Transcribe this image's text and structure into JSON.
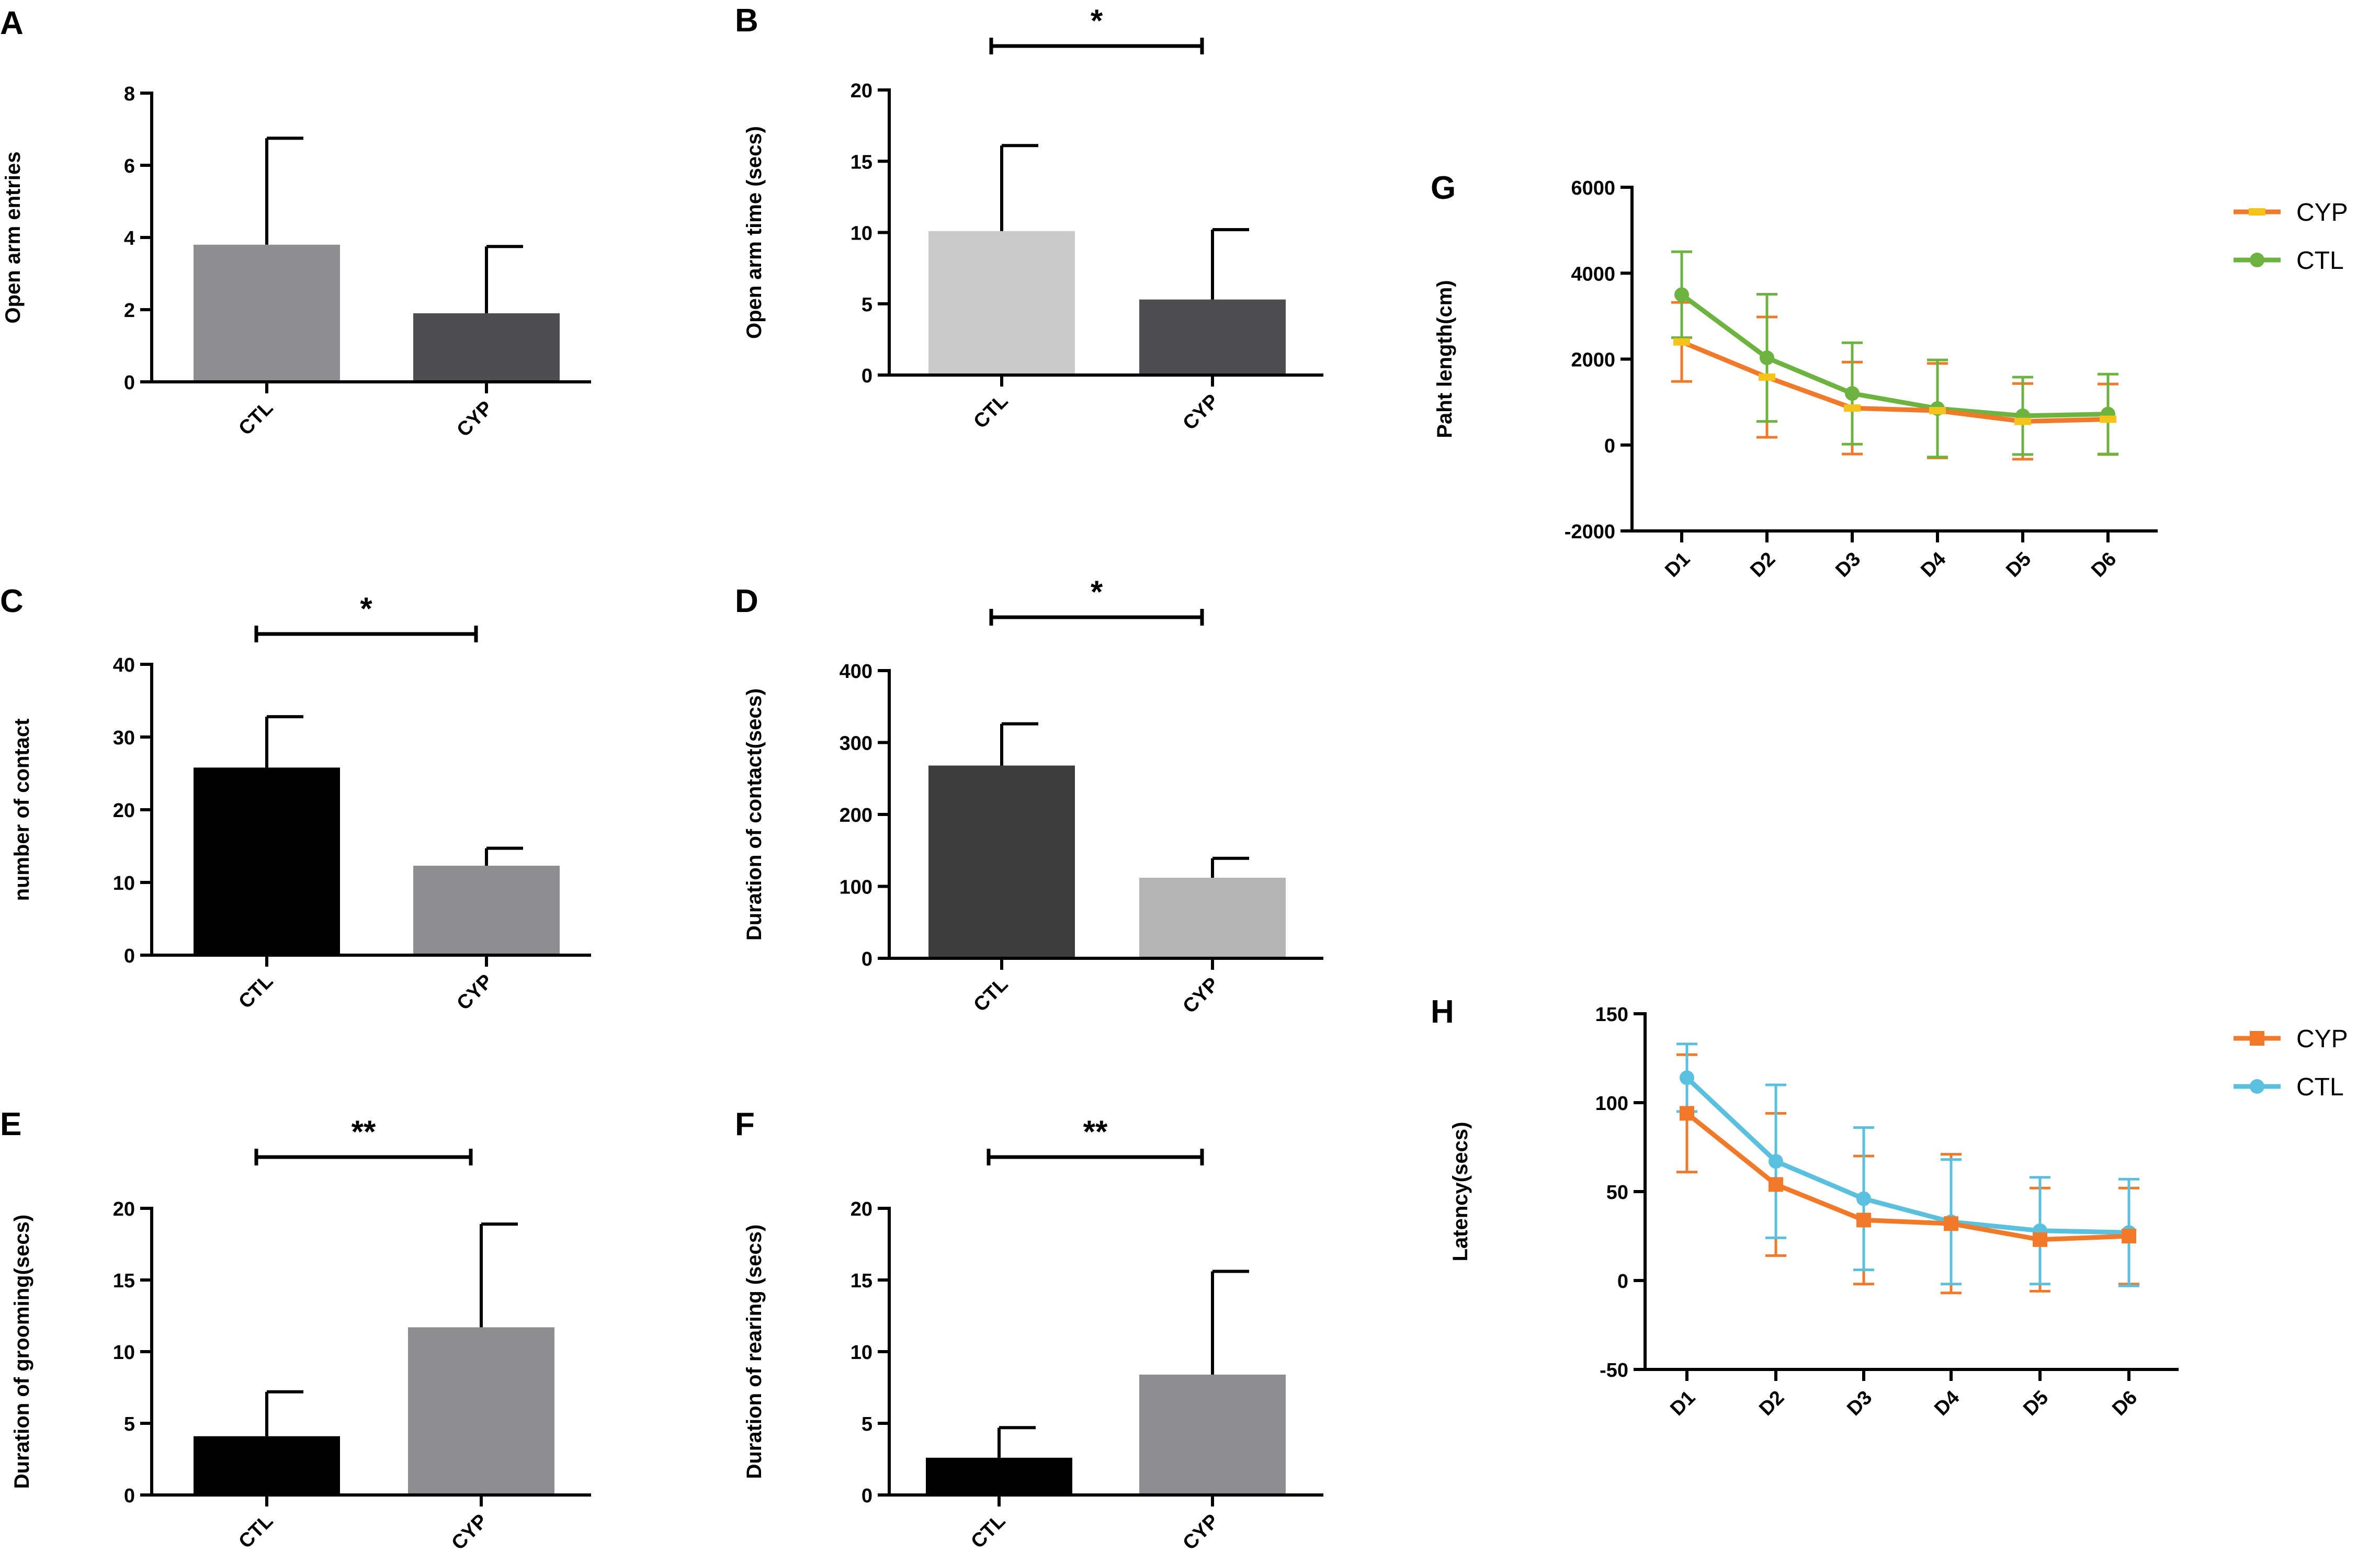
{
  "chart_data": [
    {
      "id": "A",
      "type": "bar",
      "letter": "A",
      "categories": [
        "CTL",
        "CYP"
      ],
      "values": [
        3.8,
        1.9
      ],
      "errors": [
        2.95,
        1.85
      ],
      "colors": [
        "#8e8e91",
        "#4d4d4f"
      ],
      "ylabel": "Open arm entries",
      "ylim": [
        0,
        8
      ],
      "yticks": [
        0,
        2,
        4,
        6,
        8
      ],
      "significance": "",
      "title": ""
    },
    {
      "id": "B",
      "type": "bar",
      "letter": "B",
      "categories": [
        "CTL",
        "CYP"
      ],
      "values": [
        10.1,
        5.3
      ],
      "errors": [
        6.0,
        4.9
      ],
      "colors": [
        "#cacaca",
        "#4d4d4f"
      ],
      "ylabel": "Open arm time  (secs)",
      "ylim": [
        0,
        20
      ],
      "yticks": [
        0,
        5,
        10,
        15,
        20
      ],
      "significance": "*",
      "title": ""
    },
    {
      "id": "C",
      "type": "bar",
      "letter": "C",
      "categories": [
        "CTL",
        "CYP"
      ],
      "values": [
        25.8,
        12.3
      ],
      "errors": [
        7.0,
        2.4
      ],
      "colors": [
        "#000000",
        "#8e8e91"
      ],
      "ylabel": "number of contact",
      "ylim": [
        0,
        40
      ],
      "yticks": [
        0,
        10,
        20,
        30,
        40
      ],
      "significance": "*",
      "title": ""
    },
    {
      "id": "D",
      "type": "bar",
      "letter": "D",
      "categories": [
        "CTL",
        "CYP"
      ],
      "values": [
        268,
        112
      ],
      "errors": [
        58,
        27
      ],
      "colors": [
        "#3c3c3c",
        "#b4b4b4"
      ],
      "ylabel": "Duration of contact(secs)",
      "ylim": [
        0,
        400
      ],
      "yticks": [
        0,
        100,
        200,
        300,
        400
      ],
      "significance": "*",
      "title": ""
    },
    {
      "id": "E",
      "type": "bar",
      "letter": "E",
      "categories": [
        "CTL",
        "CYP"
      ],
      "values": [
        4.1,
        11.7
      ],
      "errors": [
        3.1,
        7.2
      ],
      "colors": [
        "#000000",
        "#8e8e91"
      ],
      "ylabel": "Duration of grooming(secs)",
      "ylim": [
        0,
        20
      ],
      "yticks": [
        0,
        5,
        10,
        15,
        20
      ],
      "significance": "**",
      "title": ""
    },
    {
      "id": "F",
      "type": "bar",
      "letter": "F",
      "categories": [
        "CTL",
        "CYP"
      ],
      "values": [
        2.6,
        8.4
      ],
      "errors": [
        2.1,
        7.2
      ],
      "colors": [
        "#000000",
        "#8e8e91"
      ],
      "ylabel": "Duration of rearing  (secs)",
      "ylim": [
        0,
        20
      ],
      "yticks": [
        0,
        5,
        10,
        15,
        20
      ],
      "significance": "**",
      "title": ""
    },
    {
      "id": "G",
      "type": "line",
      "letter": "G",
      "x": [
        "D1",
        "D2",
        "D3",
        "D4",
        "D5",
        "D6"
      ],
      "series": [
        {
          "name": "CYP",
          "marker": "bar",
          "color": "#f07a2a",
          "markerColor": "#f6c21c",
          "values": [
            2400,
            1580,
            860,
            800,
            550,
            600
          ],
          "errors": [
            920,
            1400,
            1070,
            1100,
            880,
            820
          ]
        },
        {
          "name": "CTL",
          "marker": "circle",
          "color": "#6db33f",
          "markerColor": "#6db33f",
          "values": [
            3500,
            2030,
            1200,
            850,
            680,
            720
          ],
          "errors": [
            1000,
            1480,
            1180,
            1130,
            900,
            930
          ]
        }
      ],
      "ylabel": "Paht length(cm)",
      "ylim": [
        -2000,
        6000
      ],
      "yticks": [
        -2000,
        0,
        2000,
        4000,
        6000
      ],
      "title": ""
    },
    {
      "id": "H",
      "type": "line",
      "letter": "H",
      "x": [
        "D1",
        "D2",
        "D3",
        "D4",
        "D5",
        "D6"
      ],
      "series": [
        {
          "name": "CYP",
          "marker": "square",
          "color": "#f07a2a",
          "markerColor": "#f07a2a",
          "values": [
            94,
            54,
            34,
            32,
            23,
            25
          ],
          "errors": [
            33,
            40,
            36,
            39,
            29,
            27
          ]
        },
        {
          "name": "CTL",
          "marker": "circle",
          "color": "#5bc0de",
          "markerColor": "#5bc0de",
          "values": [
            114,
            67,
            46,
            33,
            28,
            27
          ],
          "errors": [
            19,
            43,
            40,
            35,
            30,
            30
          ]
        }
      ],
      "ylabel": "Latency(secs)",
      "ylim": [
        -50,
        150
      ],
      "yticks": [
        -50,
        0,
        50,
        100,
        150
      ],
      "title": ""
    }
  ]
}
